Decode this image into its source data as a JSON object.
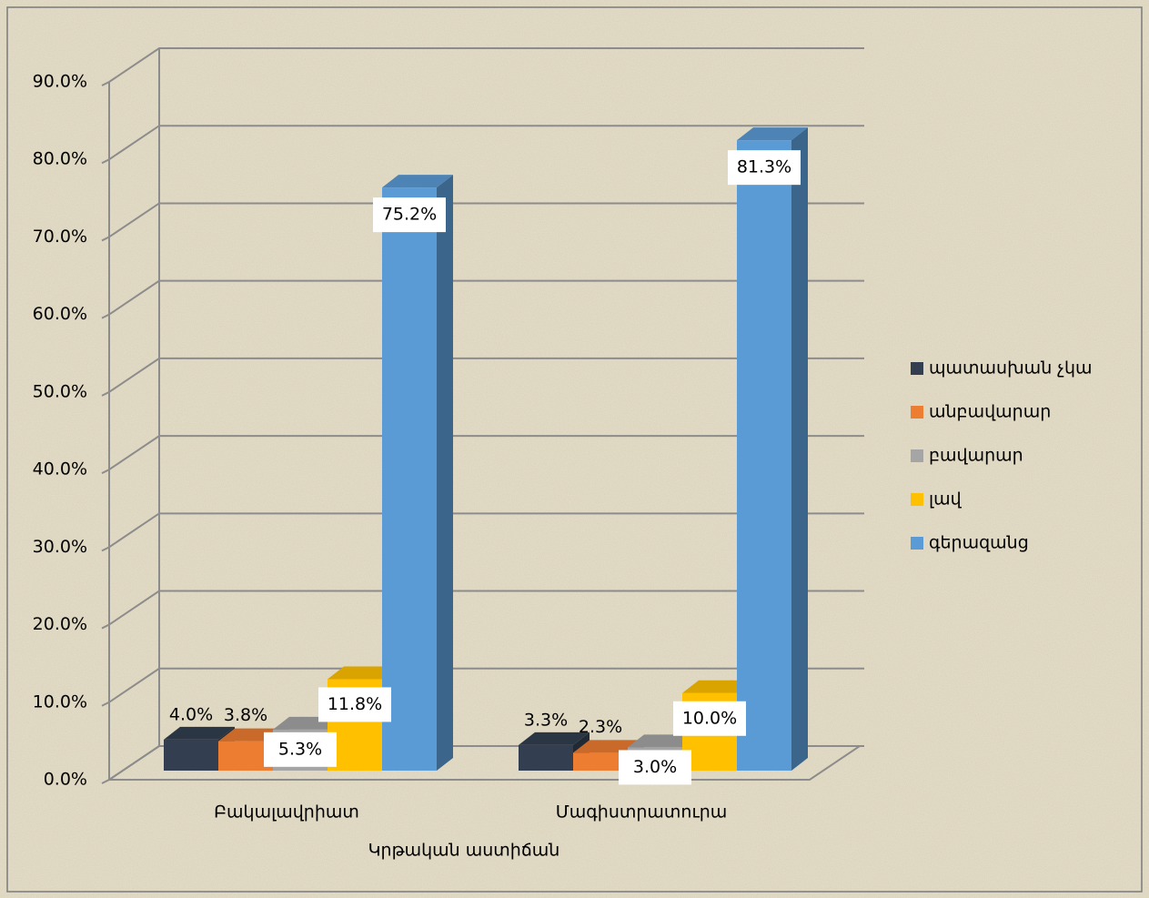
{
  "chart_data": {
    "type": "bar3d",
    "x_label": "Կրթական աստիճան",
    "categories": [
      "Բակալավրիատ",
      "Մագիստրատուրա"
    ],
    "series": [
      {
        "name": "պատասխան չկա",
        "color": "#333f50",
        "values": [
          4.0,
          3.3
        ],
        "value_labels": [
          "4.0%",
          "3.3%"
        ]
      },
      {
        "name": "անբավարար",
        "color": "#ed7d31",
        "values": [
          3.8,
          2.3
        ],
        "value_labels": [
          "3.8%",
          "2.3%"
        ]
      },
      {
        "name": "բավարար",
        "color": "#a5a5a5",
        "values": [
          5.3,
          3.0
        ],
        "value_labels": [
          "5.3%",
          "3.0%"
        ]
      },
      {
        "name": "լավ",
        "color": "#ffc000",
        "values": [
          11.8,
          10.0
        ],
        "value_labels": [
          "11.8%",
          "10.0%"
        ]
      },
      {
        "name": "գերազանց",
        "color": "#5b9bd5",
        "values": [
          75.2,
          81.3
        ],
        "value_labels": [
          "75.2%",
          "81.3%"
        ]
      }
    ],
    "ylim": [
      0,
      90
    ],
    "yticks": [
      {
        "value": 0,
        "label": "0.0%"
      },
      {
        "value": 10,
        "label": "10.0%"
      },
      {
        "value": 20,
        "label": "20.0%"
      },
      {
        "value": 30,
        "label": "30.0%"
      },
      {
        "value": 40,
        "label": "40.0%"
      },
      {
        "value": 50,
        "label": "50.0%"
      },
      {
        "value": 60,
        "label": "60.0%"
      },
      {
        "value": 70,
        "label": "70.0%"
      },
      {
        "value": 80,
        "label": "80.0%"
      },
      {
        "value": 90,
        "label": "90.0%"
      }
    ],
    "grid": true,
    "legend": "right"
  }
}
